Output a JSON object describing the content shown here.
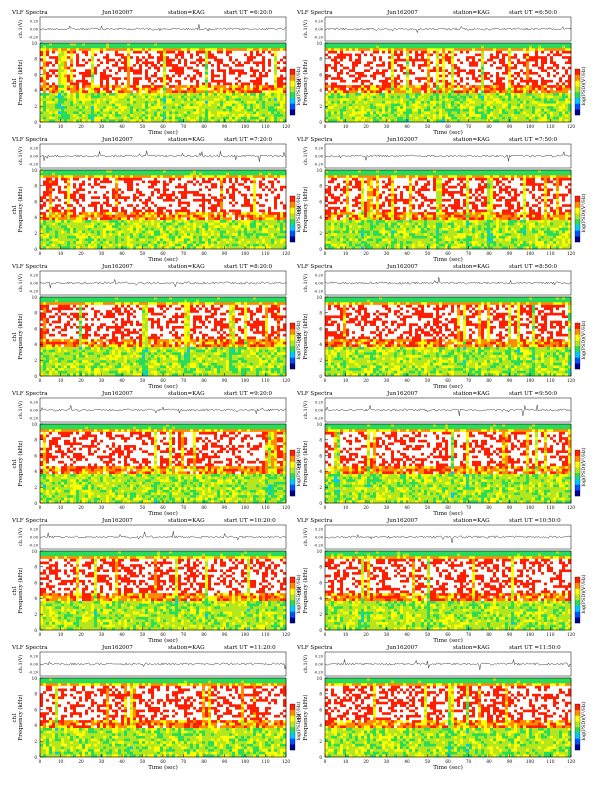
{
  "colors": {
    "background": "#ffffff",
    "spectrogram": [
      "#00008c",
      "#0050ff",
      "#00c8ff",
      "#28dc5a",
      "#b4e61e",
      "#ffff00",
      "#ff8c00",
      "#ff1e00",
      "#ffffff"
    ]
  },
  "chart_data": [
    {
      "type": "heatmap",
      "title": "VLF Spectra",
      "date": "Jun162007",
      "station": "station=KAG",
      "start": "start UT =6:20:0",
      "xlabel": "Time (sec)",
      "ylabel": "Frequency (kHz)",
      "channel": "ch1",
      "waveform_label": "ch.1(V)",
      "waveform_ticks": [
        "0.20",
        "0.00",
        "-0.20"
      ],
      "colorbar_label": "log(PSD)(V²/Hz)",
      "x_ticks": [
        0,
        10,
        20,
        30,
        40,
        50,
        60,
        70,
        80,
        90,
        100,
        110,
        120
      ],
      "y_ticks": [
        0,
        2,
        4,
        6,
        8,
        10
      ],
      "xlim": [
        0,
        120
      ],
      "ylim": [
        0,
        10
      ]
    },
    {
      "type": "heatmap",
      "title": "VLF Spectra",
      "date": "Jun162007",
      "station": "station=KAG",
      "start": "start UT =6:50:0",
      "xlabel": "Time (sec)",
      "ylabel": "Frequency (kHz)",
      "channel": "ch1",
      "waveform_label": "ch.1(V)",
      "waveform_ticks": [
        "0.20",
        "0.00",
        "-0.20"
      ],
      "colorbar_label": "log(PSD)(V²/Hz)",
      "x_ticks": [
        0,
        10,
        20,
        30,
        40,
        50,
        60,
        70,
        80,
        90,
        100,
        110,
        120
      ],
      "y_ticks": [
        0,
        2,
        4,
        6,
        8,
        10
      ],
      "xlim": [
        0,
        120
      ],
      "ylim": [
        0,
        10
      ]
    },
    {
      "type": "heatmap",
      "title": "VLF Spectra",
      "date": "Jun162007",
      "station": "station=KAG",
      "start": "start UT =7:20:0",
      "xlabel": "Time (sec)",
      "ylabel": "Frequency (kHz)",
      "channel": "ch1",
      "waveform_label": "ch.1(V)",
      "waveform_ticks": [
        "0.20",
        "0.00",
        "-0.20"
      ],
      "colorbar_label": "log(PSD)(V²/Hz)",
      "x_ticks": [
        0,
        10,
        20,
        30,
        40,
        50,
        60,
        70,
        80,
        90,
        100,
        110,
        120
      ],
      "y_ticks": [
        0,
        2,
        4,
        6,
        8,
        10
      ],
      "xlim": [
        0,
        120
      ],
      "ylim": [
        0,
        10
      ]
    },
    {
      "type": "heatmap",
      "title": "VLF Spectra",
      "date": "Jun162007",
      "station": "station=KAG",
      "start": "start UT =7:50:0",
      "xlabel": "Time (sec)",
      "ylabel": "Frequency (kHz)",
      "channel": "ch1",
      "waveform_label": "ch.1(V)",
      "waveform_ticks": [
        "0.20",
        "0.00",
        "-0.20"
      ],
      "colorbar_label": "log(PSD)(V²/Hz)",
      "x_ticks": [
        0,
        10,
        20,
        30,
        40,
        50,
        60,
        70,
        80,
        90,
        100,
        110,
        120
      ],
      "y_ticks": [
        0,
        2,
        4,
        6,
        8,
        10
      ],
      "xlim": [
        0,
        120
      ],
      "ylim": [
        0,
        10
      ]
    },
    {
      "type": "heatmap",
      "title": "VLF Spectra",
      "date": "Jun162007",
      "station": "station=KAG",
      "start": "start UT =8:20:0",
      "xlabel": "Time (sec)",
      "ylabel": "Frequency (kHz)",
      "channel": "ch1",
      "waveform_label": "ch.1(V)",
      "waveform_ticks": [
        "0.20",
        "0.00",
        "-0.20"
      ],
      "colorbar_label": "log(PSD)(V²/Hz)",
      "x_ticks": [
        0,
        10,
        20,
        30,
        40,
        50,
        60,
        70,
        80,
        90,
        100,
        110,
        120
      ],
      "y_ticks": [
        0,
        2,
        4,
        6,
        8,
        10
      ],
      "xlim": [
        0,
        120
      ],
      "ylim": [
        0,
        10
      ]
    },
    {
      "type": "heatmap",
      "title": "VLF Spectra",
      "date": "Jun162007",
      "station": "station=KAG",
      "start": "start UT =8:50:0",
      "xlabel": "Time (sec)",
      "ylabel": "Frequency (kHz)",
      "channel": "ch1",
      "waveform_label": "ch.1(V)",
      "waveform_ticks": [
        "0.20",
        "0.00",
        "-0.20"
      ],
      "colorbar_label": "log(PSD)(V²/Hz)",
      "x_ticks": [
        0,
        10,
        20,
        30,
        40,
        50,
        60,
        70,
        80,
        90,
        100,
        110,
        120
      ],
      "y_ticks": [
        0,
        2,
        4,
        6,
        8,
        10
      ],
      "xlim": [
        0,
        120
      ],
      "ylim": [
        0,
        10
      ]
    },
    {
      "type": "heatmap",
      "title": "VLF Spectra",
      "date": "Jun162007",
      "station": "station=KAG",
      "start": "start UT =9:20:0",
      "xlabel": "Time (sec)",
      "ylabel": "Frequency (kHz)",
      "channel": "ch1",
      "waveform_label": "ch.1(V)",
      "waveform_ticks": [
        "0.20",
        "0.00",
        "-0.20"
      ],
      "colorbar_label": "log(PSD)(V²/Hz)",
      "x_ticks": [
        0,
        10,
        20,
        30,
        40,
        50,
        60,
        70,
        80,
        90,
        100,
        110,
        120
      ],
      "y_ticks": [
        0,
        2,
        4,
        6,
        8,
        10
      ],
      "xlim": [
        0,
        120
      ],
      "ylim": [
        0,
        10
      ]
    },
    {
      "type": "heatmap",
      "title": "VLF Spectra",
      "date": "Jun162007",
      "station": "station=KAG",
      "start": "start UT =9:50:0",
      "xlabel": "Time (sec)",
      "ylabel": "Frequency (kHz)",
      "channel": "ch1",
      "waveform_label": "ch.1(V)",
      "waveform_ticks": [
        "0.20",
        "0.00",
        "-0.20"
      ],
      "colorbar_label": "log(PSD)(V²/Hz)",
      "x_ticks": [
        0,
        10,
        20,
        30,
        40,
        50,
        60,
        70,
        80,
        90,
        100,
        110,
        120
      ],
      "y_ticks": [
        0,
        2,
        4,
        6,
        8,
        10
      ],
      "xlim": [
        0,
        120
      ],
      "ylim": [
        0,
        10
      ]
    },
    {
      "type": "heatmap",
      "title": "VLF Spectra",
      "date": "Jun162007",
      "station": "station=KAG",
      "start": "start UT =10:20:0",
      "xlabel": "Time (sec)",
      "ylabel": "Frequency (kHz)",
      "channel": "ch1",
      "waveform_label": "ch.1(V)",
      "waveform_ticks": [
        "0.20",
        "0.00",
        "-0.20"
      ],
      "colorbar_label": "log(PSD)(V²/Hz)",
      "x_ticks": [
        0,
        10,
        20,
        30,
        40,
        50,
        60,
        70,
        80,
        90,
        100,
        110,
        120
      ],
      "y_ticks": [
        0,
        2,
        4,
        6,
        8,
        10
      ],
      "xlim": [
        0,
        120
      ],
      "ylim": [
        0,
        10
      ]
    },
    {
      "type": "heatmap",
      "title": "VLF Spectra",
      "date": "Jun162007",
      "station": "station=KAG",
      "start": "start UT =10:50:0",
      "xlabel": "Time (sec)",
      "ylabel": "Frequency (kHz)",
      "channel": "ch1",
      "waveform_label": "ch.1(V)",
      "waveform_ticks": [
        "0.20",
        "0.00",
        "-0.20"
      ],
      "colorbar_label": "log(PSD)(V²/Hz)",
      "x_ticks": [
        0,
        10,
        20,
        30,
        40,
        50,
        60,
        70,
        80,
        90,
        100,
        110,
        120
      ],
      "y_ticks": [
        0,
        2,
        4,
        6,
        8,
        10
      ],
      "xlim": [
        0,
        120
      ],
      "ylim": [
        0,
        10
      ]
    },
    {
      "type": "heatmap",
      "title": "VLF Spectra",
      "date": "Jun162007",
      "station": "station=KAG",
      "start": "start UT =11:20:0",
      "xlabel": "Time (sec)",
      "ylabel": "Frequency (kHz)",
      "channel": "ch1",
      "waveform_label": "ch.1(V)",
      "waveform_ticks": [
        "0.20",
        "0.00",
        "-0.20"
      ],
      "colorbar_label": "log(PSD)(V²/Hz)",
      "x_ticks": [
        0,
        10,
        20,
        30,
        40,
        50,
        60,
        70,
        80,
        90,
        100,
        110,
        120
      ],
      "y_ticks": [
        0,
        2,
        4,
        6,
        8,
        10
      ],
      "xlim": [
        0,
        120
      ],
      "ylim": [
        0,
        10
      ]
    },
    {
      "type": "heatmap",
      "title": "VLF Spectra",
      "date": "Jun162007",
      "station": "station=KAG",
      "start": "start UT =11:50:0",
      "xlabel": "Time (sec)",
      "ylabel": "Frequency (kHz)",
      "channel": "ch1",
      "waveform_label": "ch.1(V)",
      "waveform_ticks": [
        "0.20",
        "0.00",
        "-0.20"
      ],
      "colorbar_label": "log(PSD)(V²/Hz)",
      "x_ticks": [
        0,
        10,
        20,
        30,
        40,
        50,
        60,
        70,
        80,
        90,
        100,
        110,
        120
      ],
      "y_ticks": [
        0,
        2,
        4,
        6,
        8,
        10
      ],
      "xlim": [
        0,
        120
      ],
      "ylim": [
        0,
        10
      ]
    }
  ]
}
